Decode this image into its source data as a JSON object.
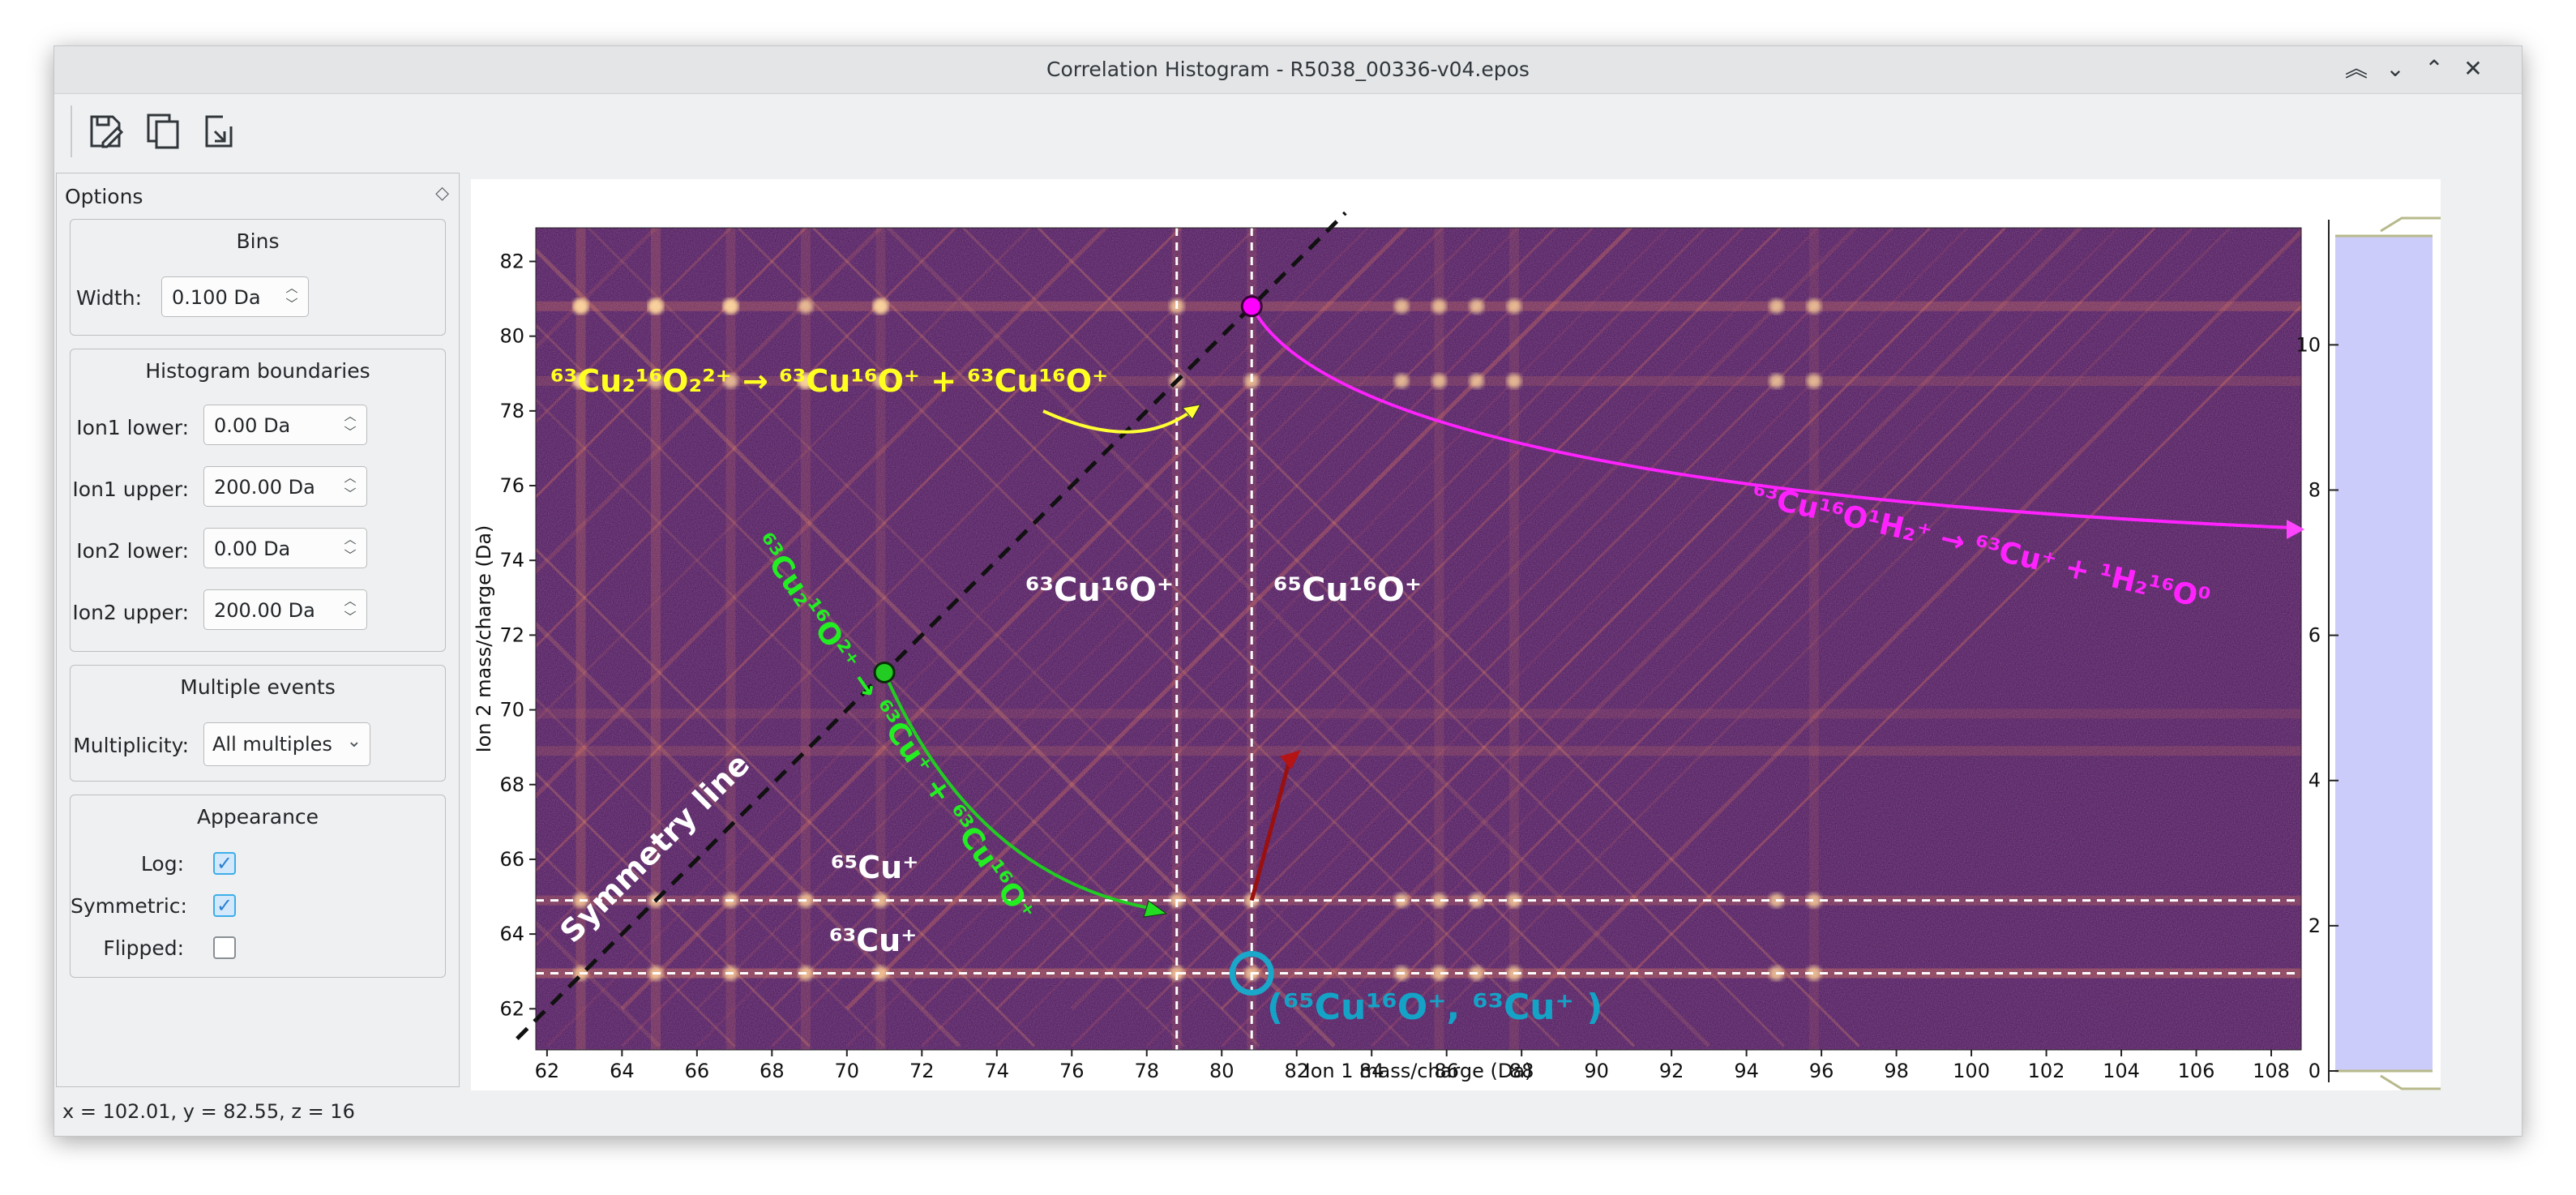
{
  "window": {
    "title": "Correlation Histogram - R5038_00336-v04.epos",
    "controls": [
      "︽",
      "⌄",
      "⌃",
      "✕"
    ]
  },
  "toolbar": {
    "buttons": [
      "save-icon",
      "copy-icon",
      "export-icon"
    ]
  },
  "options": {
    "title": "Options",
    "bins": {
      "title": "Bins",
      "width_label": "Width:",
      "width_value": "0.100 Da"
    },
    "boundaries": {
      "title": "Histogram boundaries",
      "ion1_lower_label": "Ion1 lower:",
      "ion1_lower_value": "0.00 Da",
      "ion1_upper_label": "Ion1 upper:",
      "ion1_upper_value": "200.00 Da",
      "ion2_lower_label": "Ion2 lower:",
      "ion2_lower_value": "0.00 Da",
      "ion2_upper_label": "Ion2 upper:",
      "ion2_upper_value": "200.00 Da"
    },
    "multiple": {
      "title": "Multiple events",
      "multiplicity_label": "Multiplicity:",
      "multiplicity_value": "All multiples"
    },
    "appearance": {
      "title": "Appearance",
      "log_label": "Log:",
      "log_checked": true,
      "symmetric_label": "Symmetric:",
      "symmetric_checked": true,
      "flipped_label": "Flipped:",
      "flipped_checked": false
    }
  },
  "status": {
    "text": "x = 102.01, y = 82.55, z = 16"
  },
  "chart_data": {
    "type": "heatmap",
    "xlabel": "Ion 1 mass/charge (Da)",
    "ylabel": "Ion 2 mass/charge (Da)",
    "xlim": [
      61.7,
      108.8
    ],
    "ylim": [
      60.9,
      82.9
    ],
    "xticks": [
      62,
      64,
      66,
      68,
      70,
      72,
      74,
      76,
      78,
      80,
      82,
      84,
      86,
      88,
      90,
      92,
      94,
      96,
      98,
      100,
      102,
      104,
      106,
      108
    ],
    "yticks": [
      62,
      64,
      66,
      68,
      70,
      72,
      74,
      76,
      78,
      80,
      82
    ],
    "colorbar": {
      "ticks": [
        0,
        2,
        4,
        6,
        8,
        10
      ],
      "range": [
        0,
        11.5
      ],
      "handle_colors": [
        "#fcfdbf",
        "#f8765c",
        "#b5367a",
        "#3b0f70",
        "#000000"
      ]
    },
    "colormap": [
      "#000004",
      "#3b0f70",
      "#8c2981",
      "#de4968",
      "#fe9f6d",
      "#fcfdbf"
    ],
    "reference_lines": {
      "x": [
        78.8,
        80.8
      ],
      "y": [
        62.95,
        64.9
      ]
    },
    "symmetry_line": {
      "label": "Symmetry line",
      "from": [
        61.2,
        61.2
      ],
      "to": [
        83.3,
        83.3
      ]
    },
    "labels": {
      "yellow": "⁶³Cu₂¹⁶O₂²⁺ → ⁶³Cu¹⁶O⁺ + ⁶³Cu¹⁶O⁺",
      "green": "⁶³Cu₂¹⁶O²⁺ → ⁶³Cu⁺ + ⁶³Cu¹⁶O⁺",
      "magenta": "⁶³Cu¹⁶O¹H₂⁺ → ⁶³Cu⁺ + ¹H₂¹⁶O⁰",
      "cu63o": "⁶³Cu¹⁶O⁺",
      "cu65o": "⁶⁵Cu¹⁶O⁺",
      "cu65": "⁶⁵Cu⁺",
      "cu63": "⁶³Cu⁺",
      "cyan": "(⁶⁵Cu¹⁶O⁺, ⁶³Cu⁺ )"
    },
    "markers": [
      {
        "name": "green-dot",
        "x": 71.0,
        "y": 71.0,
        "color": "#22cc22"
      },
      {
        "name": "magenta-dot",
        "x": 80.8,
        "y": 80.8,
        "color": "#ff00ff"
      },
      {
        "name": "cyan-ring",
        "x": 80.8,
        "y": 62.95,
        "color": "#1aa7c9"
      }
    ]
  }
}
